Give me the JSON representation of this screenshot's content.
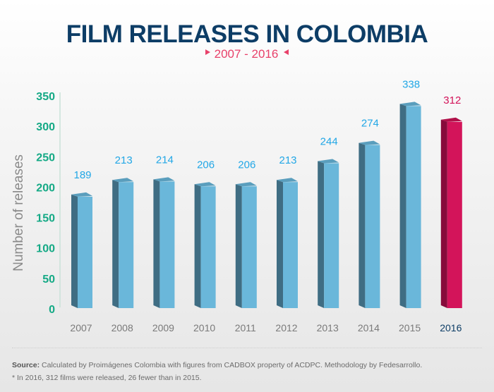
{
  "chart_data": {
    "type": "bar",
    "title": "FILM RELEASES IN COLOMBIA",
    "subtitle": "2007 - 2016",
    "xlabel": "",
    "ylabel": "Number of releases",
    "ylim": [
      0,
      350
    ],
    "yticks": [
      0,
      50,
      100,
      150,
      200,
      250,
      300,
      350
    ],
    "categories": [
      "2007",
      "2008",
      "2009",
      "2010",
      "2011",
      "2012",
      "2013",
      "2014",
      "2015",
      "2016"
    ],
    "values": [
      189,
      213,
      214,
      206,
      206,
      213,
      244,
      274,
      338,
      312
    ],
    "highlight_index": 9,
    "grid": false
  },
  "colors": {
    "bar_front": "#6ab7da",
    "bar_side": "#3f6d83",
    "bar_top": "#5a9ebd",
    "hl_front": "#d3145a",
    "hl_side": "#870b3b",
    "hl_top": "#b01049"
  },
  "footer": {
    "source_label": "Source:",
    "source_text": "Calculated by Proimágenes Colombia with figures from CADBOX property of ACDPC. Methodology by Fedesarrollo.",
    "note": "* In 2016, 312 films were released, 26 fewer than in 2015."
  }
}
